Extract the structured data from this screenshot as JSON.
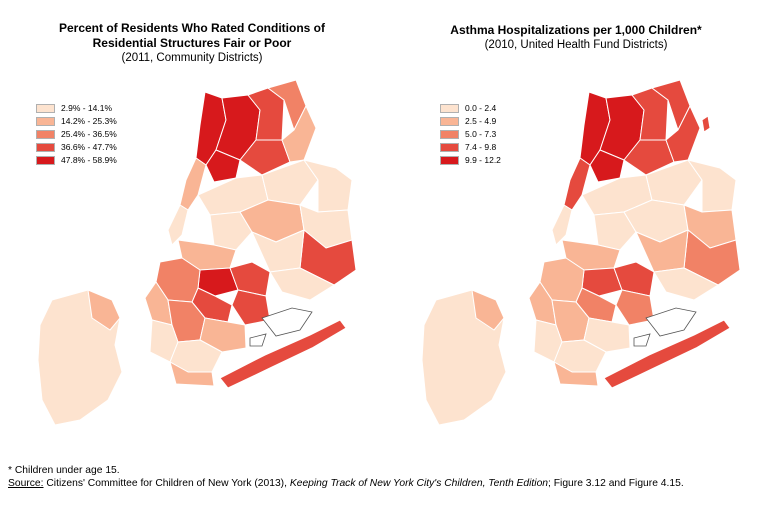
{
  "left_map": {
    "title_line1": "Percent of Residents Who Rated Conditions of",
    "title_line2": "Residential Structures Fair or Poor",
    "subtitle": "(2011, Community Districts)",
    "legend": [
      {
        "label": "2.9% - 14.1%",
        "color": "#fde3cf"
      },
      {
        "label": "14.2% - 25.3%",
        "color": "#f9b595"
      },
      {
        "label": "25.4% - 36.5%",
        "color": "#f18266"
      },
      {
        "label": "36.6% - 47.7%",
        "color": "#e54a3e"
      },
      {
        "label": "47.8% - 58.9%",
        "color": "#d7191c"
      }
    ]
  },
  "right_map": {
    "title_line1": "Asthma Hospitalizations per 1,000 Children*",
    "subtitle": "(2010, United Health Fund Districts)",
    "legend": [
      {
        "label": "0.0 - 2.4",
        "color": "#fde3cf"
      },
      {
        "label": "2.5 - 4.9",
        "color": "#f9b595"
      },
      {
        "label": "5.0 - 7.3",
        "color": "#f18266"
      },
      {
        "label": "7.4 - 9.8",
        "color": "#e54a3e"
      },
      {
        "label": "9.9 - 12.2",
        "color": "#d7191c"
      }
    ]
  },
  "footer": {
    "note": "* Children under age 15.",
    "source_label": "Source:",
    "source_text": " Citizens' Committee for Children of New York (2013), ",
    "source_title": "Keeping Track of New York City's Children, Tenth Edition",
    "source_tail": "; Figure 3.12 and Figure 4.15."
  }
}
